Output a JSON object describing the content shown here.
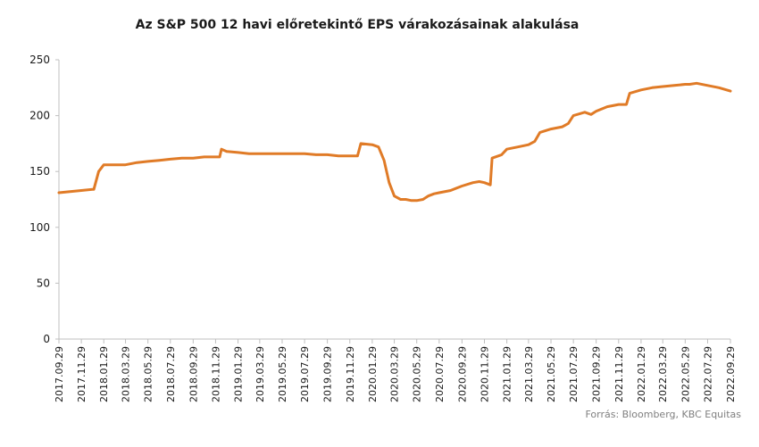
{
  "title": "Az S&P 500 12 havi előretekintő EPS várakozásainak alakulása",
  "source": "Forrás: Bloomberg, KBC Equitas",
  "chart_data": {
    "type": "line",
    "title": "Az S&P 500 12 havi előretekintő EPS várakozásainak alakulása",
    "xlabel": "",
    "ylabel": "",
    "ylim": [
      0,
      250
    ],
    "yticks": [
      0,
      50,
      100,
      150,
      200,
      250
    ],
    "grid": false,
    "legend": "none",
    "line_color": "#e07b27",
    "x_tick_labels": [
      "2017.09.29",
      "2017.11.29",
      "2018.01.29",
      "2018.03.29",
      "2018.05.29",
      "2018.07.29",
      "2018.09.29",
      "2018.11.29",
      "2019.01.29",
      "2019.03.29",
      "2019.05.29",
      "2019.07.29",
      "2019.09.29",
      "2019.11.29",
      "2020.01.29",
      "2020.03.29",
      "2020.05.29",
      "2020.07.29",
      "2020.09.29",
      "2020.11.29",
      "2021.01.29",
      "2021.03.29",
      "2021.05.29",
      "2021.07.29",
      "2021.09.29",
      "2021.11.29",
      "2022.01.29",
      "2022.03.29",
      "2022.05.29",
      "2022.07.29",
      "2022.09.29"
    ],
    "series": [
      {
        "x": [
          "2017.09.29",
          "2017.10.29",
          "2017.11.29",
          "2017.12.29",
          "2018.01.02",
          "2018.01.15",
          "2018.01.29",
          "2018.02.28",
          "2018.03.29",
          "2018.04.29",
          "2018.05.29",
          "2018.06.29",
          "2018.07.29",
          "2018.08.29",
          "2018.09.29",
          "2018.10.29",
          "2018.11.29",
          "2018.12.10",
          "2018.12.15",
          "2018.12.29",
          "2019.01.29",
          "2019.02.28",
          "2019.03.29",
          "2019.04.29",
          "2019.05.29",
          "2019.06.29",
          "2019.07.29",
          "2019.08.29",
          "2019.09.29",
          "2019.10.29",
          "2019.11.29",
          "2019.12.20",
          "2019.12.29",
          "2020.01.29",
          "2020.02.15",
          "2020.03.01",
          "2020.03.15",
          "2020.03.29",
          "2020.04.15",
          "2020.04.29",
          "2020.05.15",
          "2020.05.29",
          "2020.06.15",
          "2020.06.29",
          "2020.07.15",
          "2020.07.29",
          "2020.08.29",
          "2020.09.29",
          "2020.10.29",
          "2020.11.15",
          "2020.11.29",
          "2020.12.15",
          "2020.12.20",
          "2020.12.29",
          "2021.01.15",
          "2021.01.29",
          "2021.02.28",
          "2021.03.29",
          "2021.04.15",
          "2021.04.29",
          "2021.05.29",
          "2021.06.29",
          "2021.07.15",
          "2021.07.29",
          "2021.08.29",
          "2021.09.15",
          "2021.09.29",
          "2021.10.29",
          "2021.11.29",
          "2021.12.20",
          "2021.12.29",
          "2022.01.29",
          "2022.02.28",
          "2022.03.29",
          "2022.04.29",
          "2022.05.29",
          "2022.06.10",
          "2022.06.29",
          "2022.07.29",
          "2022.08.29",
          "2022.09.29"
        ],
        "values": [
          131,
          132,
          133,
          134,
          134,
          150,
          156,
          156,
          156,
          158,
          159,
          160,
          161,
          162,
          162,
          163,
          163,
          163,
          170,
          168,
          167,
          166,
          166,
          166,
          166,
          166,
          166,
          165,
          165,
          164,
          164,
          164,
          175,
          174,
          172,
          160,
          140,
          128,
          125,
          125,
          124,
          124,
          125,
          128,
          130,
          131,
          133,
          137,
          140,
          141,
          140,
          138,
          162,
          163,
          165,
          170,
          172,
          174,
          177,
          185,
          188,
          190,
          193,
          200,
          203,
          201,
          204,
          208,
          210,
          210,
          220,
          223,
          225,
          226,
          227,
          228,
          228,
          229,
          227,
          225,
          222
        ]
      }
    ]
  }
}
